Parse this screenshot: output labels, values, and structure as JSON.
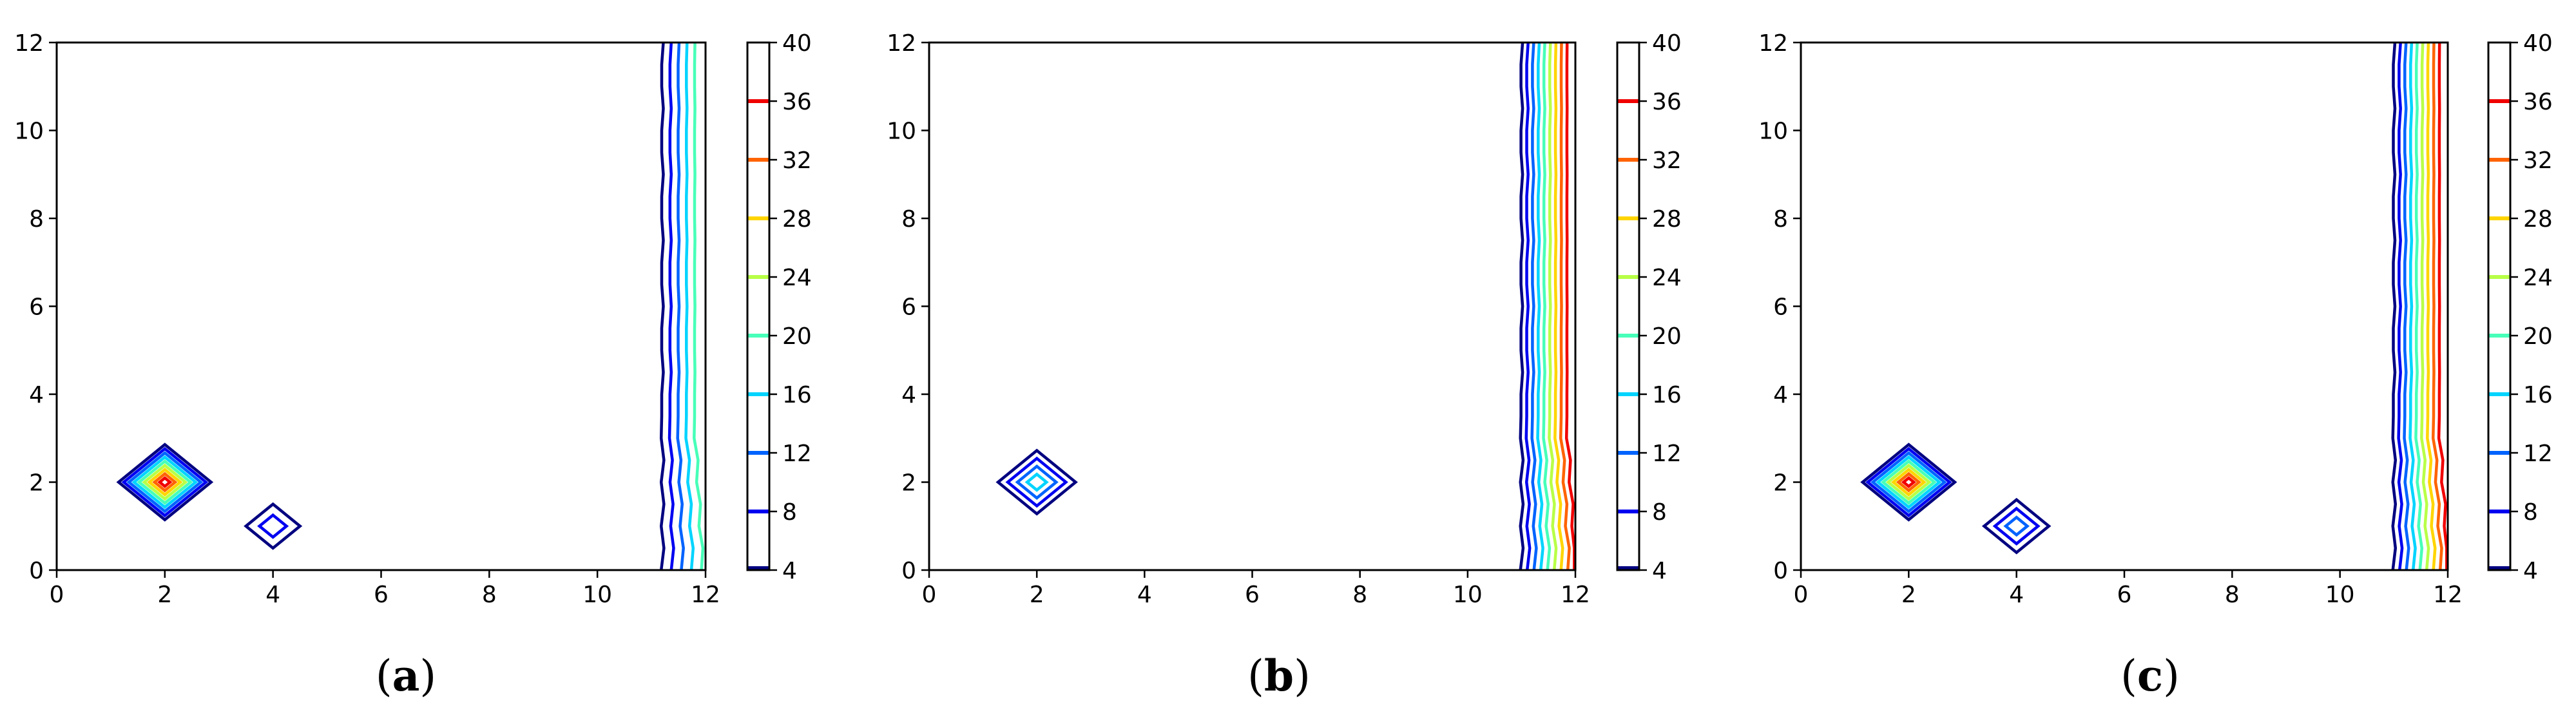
{
  "chart_data": [
    {
      "type": "contour",
      "panel_label": "(a)",
      "panel_letter": "a",
      "xlim": [
        0,
        12
      ],
      "ylim": [
        0,
        12
      ],
      "xticks": [
        "0",
        "2",
        "4",
        "6",
        "8",
        "10",
        "12"
      ],
      "yticks": [
        "0",
        "2",
        "4",
        "6",
        "8",
        "10",
        "12"
      ],
      "colorbar": {
        "min": 4,
        "max": 40,
        "ticks": [
          "4",
          "8",
          "12",
          "16",
          "20",
          "24",
          "28",
          "32",
          "36",
          "40"
        ]
      },
      "contour_levels": [
        4,
        8,
        12,
        16,
        20,
        24,
        28,
        32,
        36
      ],
      "features": [
        {
          "kind": "diamond_peak",
          "center": [
            2,
            2
          ],
          "peak": 40,
          "base_halfwidth": 0.95
        },
        {
          "kind": "diamond_peak",
          "center": [
            4,
            1
          ],
          "peak": 12,
          "base_halfwidth": 0.75
        },
        {
          "kind": "right_boundary_gradient",
          "x_start": 11.2,
          "x_end": 12,
          "value_at_edge": 24
        }
      ]
    },
    {
      "type": "contour",
      "panel_label": "(b)",
      "panel_letter": "b",
      "xlim": [
        0,
        12
      ],
      "ylim": [
        0,
        12
      ],
      "xticks": [
        "0",
        "2",
        "4",
        "6",
        "8",
        "10",
        "12"
      ],
      "yticks": [
        "0",
        "2",
        "4",
        "6",
        "8",
        "10",
        "12"
      ],
      "colorbar": {
        "min": 4,
        "max": 40,
        "ticks": [
          "4",
          "8",
          "12",
          "16",
          "20",
          "24",
          "28",
          "32",
          "36",
          "40"
        ]
      },
      "contour_levels": [
        4,
        8,
        12,
        16,
        20,
        24,
        28,
        32,
        36
      ],
      "features": [
        {
          "kind": "diamond_peak",
          "center": [
            2,
            2
          ],
          "peak": 20,
          "base_halfwidth": 0.9
        },
        {
          "kind": "diamond_peak",
          "center": [
            4,
            1
          ],
          "peak": 4,
          "base_halfwidth": 0.45
        },
        {
          "kind": "right_boundary_gradient",
          "x_start": 11.0,
          "x_end": 12,
          "value_at_edge": 40
        }
      ]
    },
    {
      "type": "contour",
      "panel_label": "(c)",
      "panel_letter": "c",
      "xlim": [
        0,
        12
      ],
      "ylim": [
        0,
        12
      ],
      "xticks": [
        "0",
        "2",
        "4",
        "6",
        "8",
        "10",
        "12"
      ],
      "yticks": [
        "0",
        "2",
        "4",
        "6",
        "8",
        "10",
        "12"
      ],
      "colorbar": {
        "min": 4,
        "max": 40,
        "ticks": [
          "4",
          "8",
          "12",
          "16",
          "20",
          "24",
          "28",
          "32",
          "36",
          "40"
        ]
      },
      "contour_levels": [
        4,
        8,
        12,
        16,
        20,
        24,
        28,
        32,
        36
      ],
      "features": [
        {
          "kind": "diamond_peak",
          "center": [
            2,
            2
          ],
          "peak": 40,
          "base_halfwidth": 0.95
        },
        {
          "kind": "diamond_peak",
          "center": [
            4,
            1
          ],
          "peak": 16,
          "base_halfwidth": 0.8
        },
        {
          "kind": "right_boundary_gradient",
          "x_start": 11.0,
          "x_end": 12,
          "value_at_edge": 40
        }
      ]
    }
  ],
  "colors": {
    "axis": "#000000",
    "background": "#ffffff",
    "colormap": "jet"
  }
}
